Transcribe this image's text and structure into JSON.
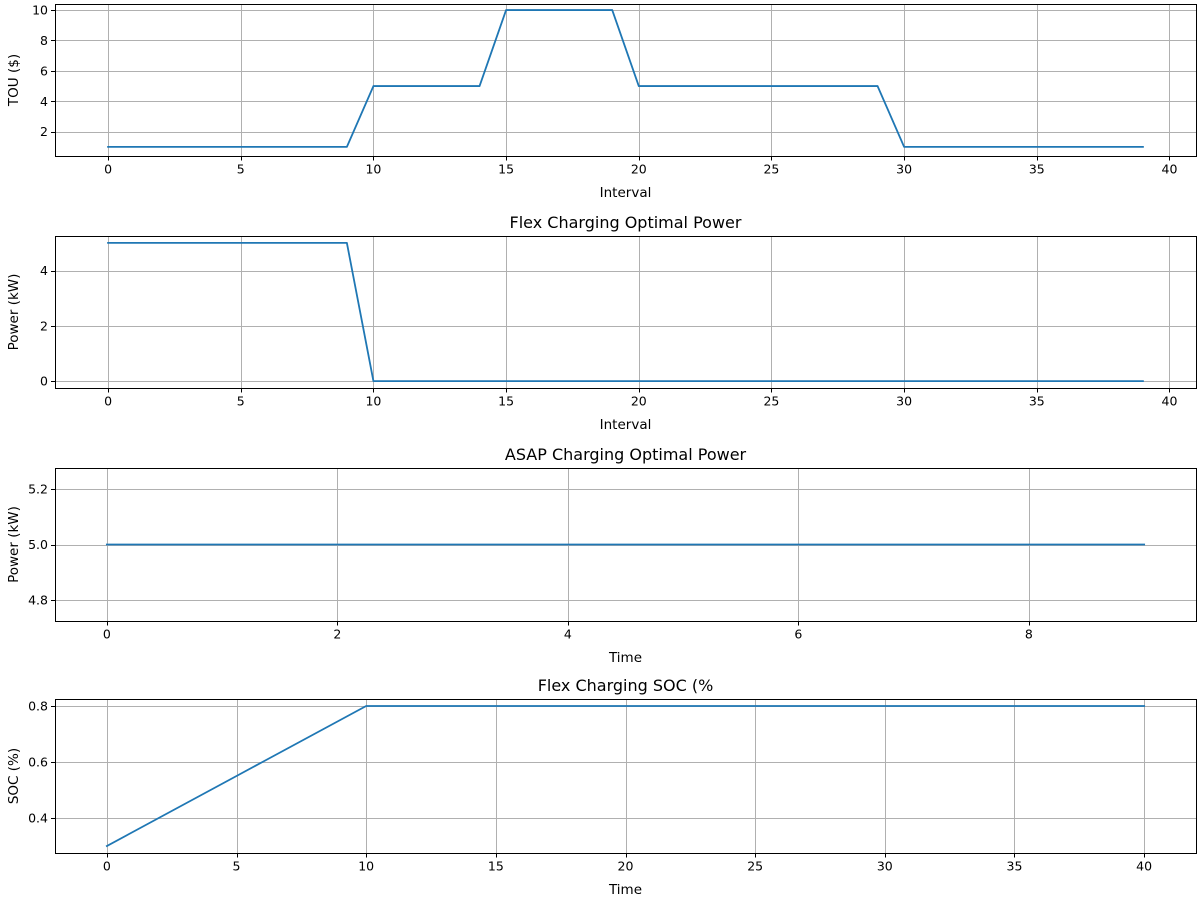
{
  "chart_data": [
    {
      "type": "line",
      "title": "",
      "xlabel": "Interval",
      "ylabel": "TOU ($)",
      "xlim": [
        -2,
        41
      ],
      "ylim": [
        0.4,
        10.4
      ],
      "xticks": [
        0,
        5,
        10,
        15,
        20,
        25,
        30,
        35,
        40
      ],
      "xtick_labels": [
        "0",
        "5",
        "10",
        "15",
        "20",
        "25",
        "30",
        "35",
        "40"
      ],
      "yticks": [
        2,
        4,
        6,
        8,
        10
      ],
      "ytick_labels": [
        "2",
        "4",
        "6",
        "8",
        "10"
      ],
      "grid": true,
      "series": [
        {
          "x": [
            0,
            1,
            2,
            3,
            4,
            5,
            6,
            7,
            8,
            9,
            10,
            11,
            12,
            13,
            14,
            15,
            16,
            17,
            18,
            19,
            20,
            21,
            22,
            23,
            24,
            25,
            26,
            27,
            28,
            29,
            30,
            31,
            32,
            33,
            34,
            35,
            36,
            37,
            38,
            39
          ],
          "y": [
            1,
            1,
            1,
            1,
            1,
            1,
            1,
            1,
            1,
            1,
            5,
            5,
            5,
            5,
            5,
            10,
            10,
            10,
            10,
            10,
            5,
            5,
            5,
            5,
            5,
            5,
            5,
            5,
            5,
            5,
            1,
            1,
            1,
            1,
            1,
            1,
            1,
            1,
            1,
            1
          ]
        }
      ]
    },
    {
      "type": "line",
      "title": "Flex Charging Optimal Power",
      "xlabel": "Interval",
      "ylabel": "Power (kW)",
      "xlim": [
        -2,
        41
      ],
      "ylim": [
        -0.25,
        5.25
      ],
      "xticks": [
        0,
        5,
        10,
        15,
        20,
        25,
        30,
        35,
        40
      ],
      "xtick_labels": [
        "0",
        "5",
        "10",
        "15",
        "20",
        "25",
        "30",
        "35",
        "40"
      ],
      "yticks": [
        0,
        2,
        4
      ],
      "ytick_labels": [
        "0",
        "2",
        "4"
      ],
      "grid": true,
      "series": [
        {
          "x": [
            0,
            1,
            2,
            3,
            4,
            5,
            6,
            7,
            8,
            9,
            10,
            11,
            12,
            13,
            14,
            15,
            16,
            17,
            18,
            19,
            20,
            21,
            22,
            23,
            24,
            25,
            26,
            27,
            28,
            29,
            30,
            31,
            32,
            33,
            34,
            35,
            36,
            37,
            38,
            39
          ],
          "y": [
            5,
            5,
            5,
            5,
            5,
            5,
            5,
            5,
            5,
            5,
            0,
            0,
            0,
            0,
            0,
            0,
            0,
            0,
            0,
            0,
            0,
            0,
            0,
            0,
            0,
            0,
            0,
            0,
            0,
            0,
            0,
            0,
            0,
            0,
            0,
            0,
            0,
            0,
            0,
            0
          ]
        }
      ]
    },
    {
      "type": "line",
      "title": "ASAP Charging Optimal Power",
      "xlabel": "Time",
      "ylabel": "Power (kW)",
      "xlim": [
        -0.45,
        9.45
      ],
      "ylim": [
        4.725,
        5.275
      ],
      "xticks": [
        0,
        2,
        4,
        6,
        8
      ],
      "xtick_labels": [
        "0",
        "2",
        "4",
        "6",
        "8"
      ],
      "yticks": [
        4.8,
        5.0,
        5.2
      ],
      "ytick_labels": [
        "4.8",
        "5.0",
        "5.2"
      ],
      "grid": true,
      "series": [
        {
          "x": [
            0,
            1,
            2,
            3,
            4,
            5,
            6,
            7,
            8,
            9
          ],
          "y": [
            5,
            5,
            5,
            5,
            5,
            5,
            5,
            5,
            5,
            5
          ]
        }
      ]
    },
    {
      "type": "line",
      "title": "Flex Charging SOC (%",
      "xlabel": "Time",
      "ylabel": "SOC (%)",
      "xlim": [
        -2,
        42
      ],
      "ylim": [
        0.275,
        0.825
      ],
      "xticks": [
        0,
        5,
        10,
        15,
        20,
        25,
        30,
        35,
        40
      ],
      "xtick_labels": [
        "0",
        "5",
        "10",
        "15",
        "20",
        "25",
        "30",
        "35",
        "40"
      ],
      "yticks": [
        0.4,
        0.6,
        0.8
      ],
      "ytick_labels": [
        "0.4",
        "0.6",
        "0.8"
      ],
      "grid": true,
      "series": [
        {
          "x": [
            0,
            1,
            2,
            3,
            4,
            5,
            6,
            7,
            8,
            9,
            10,
            11,
            12,
            13,
            14,
            15,
            16,
            17,
            18,
            19,
            20,
            21,
            22,
            23,
            24,
            25,
            26,
            27,
            28,
            29,
            30,
            31,
            32,
            33,
            34,
            35,
            36,
            37,
            38,
            39,
            40
          ],
          "y": [
            0.3,
            0.35,
            0.4,
            0.45,
            0.5,
            0.55,
            0.6,
            0.65,
            0.7,
            0.75,
            0.8,
            0.8,
            0.8,
            0.8,
            0.8,
            0.8,
            0.8,
            0.8,
            0.8,
            0.8,
            0.8,
            0.8,
            0.8,
            0.8,
            0.8,
            0.8,
            0.8,
            0.8,
            0.8,
            0.8,
            0.8,
            0.8,
            0.8,
            0.8,
            0.8,
            0.8,
            0.8,
            0.8,
            0.8,
            0.8,
            0.8
          ]
        }
      ]
    }
  ],
  "colors": {
    "series": "#1f77b4",
    "grid": "#b0b0b0",
    "background": "#ffffff"
  }
}
